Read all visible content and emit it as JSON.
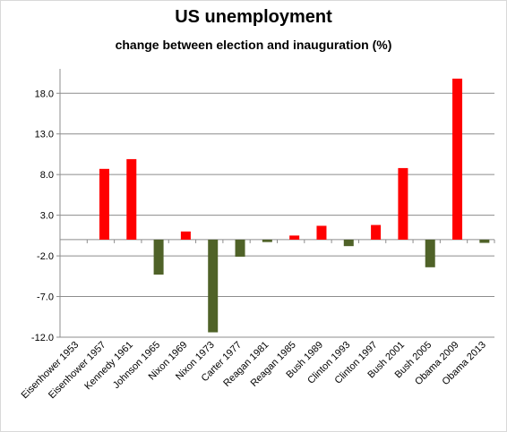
{
  "chart_data": {
    "type": "bar",
    "title": "US unemployment",
    "subtitle": "change between election and inauguration (%)",
    "xlabel": "",
    "ylabel": "",
    "ylim": [
      -12.0,
      21.0
    ],
    "yticks": [
      "18.0",
      "13.0",
      "8.0",
      "3.0",
      "-2.0",
      "-7.0",
      "-12.0"
    ],
    "ytick_values": [
      18.0,
      13.0,
      8.0,
      3.0,
      -2.0,
      -7.0,
      -12.0
    ],
    "grid": true,
    "legend": "none",
    "categories": [
      "Eisenhower 1953",
      "Eisenhower 1957",
      "Kennedy 1961",
      "Johnson 1965",
      "Nixon 1969",
      "Nixon 1973",
      "Carter 1977",
      "Reagan 1981",
      "Reagan 1985",
      "Bush 1989",
      "Clinton 1993",
      "Clinton 1997",
      "Bush 2001",
      "Bush 2005",
      "Obama 2009",
      "Obama 2013"
    ],
    "values": [
      0.0,
      8.7,
      9.9,
      -4.3,
      1.0,
      -11.4,
      -2.1,
      -0.3,
      0.5,
      1.7,
      -0.8,
      1.8,
      8.8,
      -3.4,
      19.8,
      -0.4
    ],
    "colors": {
      "positive": "#ff0000",
      "negative": "#4f6228"
    }
  }
}
